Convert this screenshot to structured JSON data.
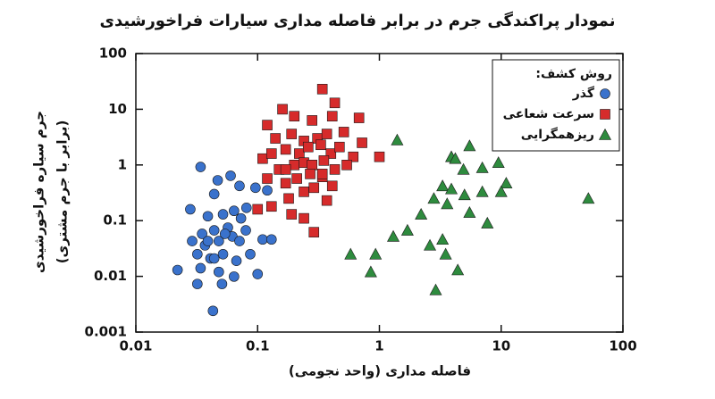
{
  "chart_data": {
    "type": "scatter",
    "title": "نمودار پراکندگی جرم در برابر فاصله مداری سیارات فراخورشیدی",
    "xlabel": "فاصله مداری (واحد نجومی)",
    "ylabel": [
      "جرم سیاره فراخورشیدی",
      "(برابر با جرم مشتری)"
    ],
    "xscale": "log",
    "yscale": "log",
    "xlim": [
      0.01,
      100
    ],
    "ylim": [
      0.001,
      100
    ],
    "xticks": [
      0.01,
      0.1,
      1,
      10,
      100
    ],
    "yticks": [
      0.001,
      0.01,
      0.1,
      1,
      10,
      100
    ],
    "grid": false,
    "legend_title": "روش کشف:",
    "legend_position": "upper right",
    "series": [
      {
        "name": "گذر",
        "color": "#3a72cc",
        "marker": "circle",
        "x": [
          0.034,
          0.047,
          0.028,
          0.044,
          0.06,
          0.071,
          0.096,
          0.12,
          0.039,
          0.052,
          0.064,
          0.073,
          0.081,
          0.057,
          0.044,
          0.035,
          0.029,
          0.037,
          0.048,
          0.062,
          0.08,
          0.11,
          0.13,
          0.032,
          0.041,
          0.052,
          0.067,
          0.087,
          0.022,
          0.034,
          0.048,
          0.064,
          0.1,
          0.032,
          0.051,
          0.043,
          0.039,
          0.054,
          0.071,
          0.044
        ],
        "y": [
          0.92,
          0.53,
          0.16,
          0.3,
          0.64,
          0.42,
          0.39,
          0.35,
          0.12,
          0.13,
          0.15,
          0.11,
          0.17,
          0.075,
          0.067,
          0.058,
          0.043,
          0.036,
          0.043,
          0.052,
          0.067,
          0.046,
          0.046,
          0.025,
          0.021,
          0.025,
          0.019,
          0.025,
          0.013,
          0.014,
          0.012,
          0.0099,
          0.011,
          0.0073,
          0.0073,
          0.0024,
          0.043,
          0.058,
          0.043,
          0.021
        ]
      },
      {
        "name": "سرعت شعاعی",
        "color": "#d62b2b",
        "marker": "square",
        "x": [
          0.34,
          0.16,
          0.43,
          0.12,
          0.2,
          0.28,
          0.41,
          0.68,
          0.14,
          0.19,
          0.24,
          0.31,
          0.37,
          0.51,
          0.72,
          0.11,
          0.13,
          0.17,
          0.22,
          0.26,
          0.33,
          0.4,
          0.47,
          0.61,
          1.0,
          0.15,
          0.2,
          0.24,
          0.28,
          0.35,
          0.43,
          0.54,
          0.12,
          0.17,
          0.21,
          0.27,
          0.34,
          0.41,
          0.18,
          0.24,
          0.29,
          0.1,
          0.13,
          0.19,
          0.24,
          0.29,
          0.37,
          0.34,
          0.17
        ],
        "y": [
          23,
          10,
          13,
          5.2,
          7.5,
          6.3,
          7.5,
          7.0,
          3.0,
          3.6,
          2.7,
          3.0,
          3.6,
          3.9,
          2.5,
          1.3,
          1.6,
          1.9,
          1.6,
          2.1,
          2.3,
          1.6,
          2.1,
          1.4,
          1.4,
          0.83,
          1.0,
          1.1,
          1.0,
          1.2,
          0.83,
          1.0,
          0.57,
          0.47,
          0.57,
          0.69,
          0.61,
          0.42,
          0.25,
          0.33,
          0.39,
          0.16,
          0.18,
          0.13,
          0.11,
          0.062,
          0.23,
          0.69,
          0.83
        ]
      },
      {
        "name": "ریزهمگرایی",
        "color": "#2e8b3e",
        "marker": "triangle",
        "x": [
          1.4,
          5.5,
          3.9,
          7.0,
          9.5,
          4.9,
          3.3,
          3.9,
          11,
          7.0,
          2.8,
          3.6,
          5.5,
          2.2,
          7.7,
          1.7,
          1.3,
          0.58,
          0.93,
          2.6,
          3.3,
          3.5,
          0.85,
          4.4,
          2.9,
          52,
          10,
          5.0,
          4.2
        ],
        "y": [
          2.8,
          2.2,
          1.4,
          0.89,
          1.1,
          0.83,
          0.42,
          0.37,
          0.47,
          0.33,
          0.25,
          0.2,
          0.14,
          0.13,
          0.09,
          0.067,
          0.052,
          0.025,
          0.025,
          0.036,
          0.046,
          0.025,
          0.012,
          0.013,
          0.0057,
          0.25,
          0.33,
          0.29,
          1.3
        ]
      }
    ]
  }
}
